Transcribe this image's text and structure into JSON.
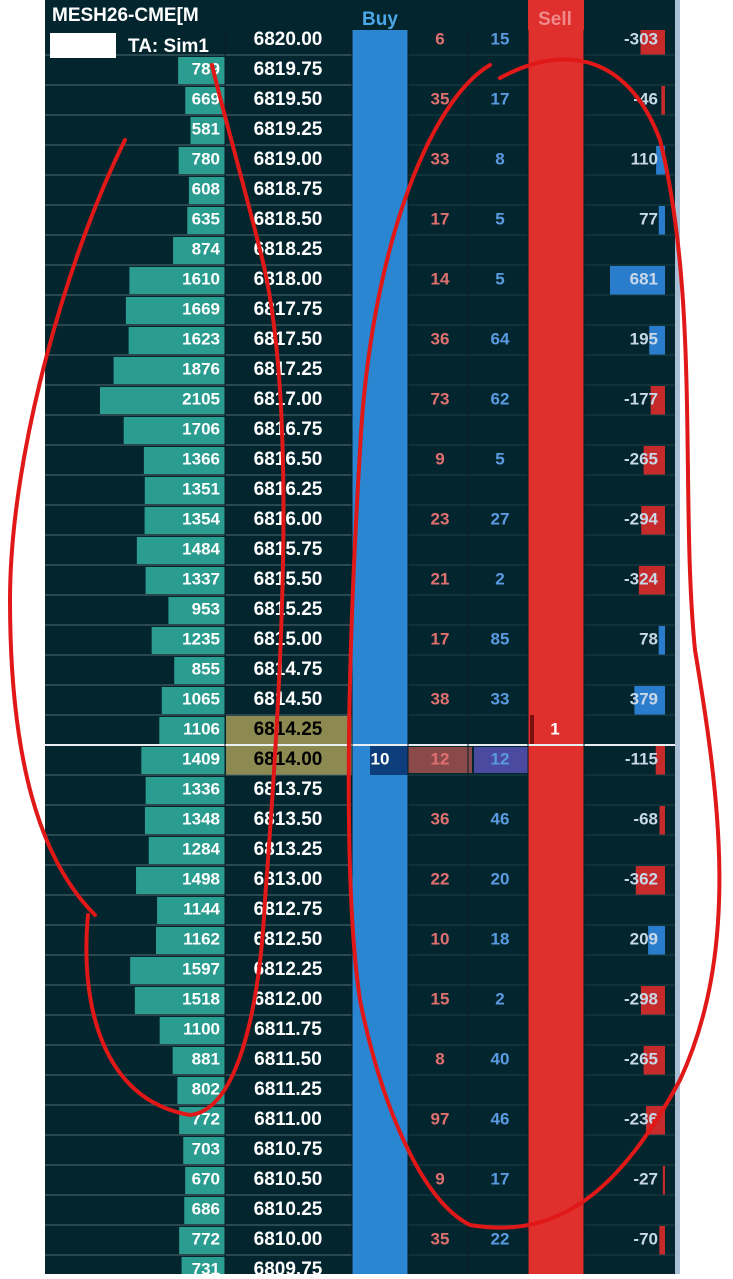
{
  "header": {
    "instrument": "MESH26-CME[M",
    "account": "TA: Sim1",
    "buy_label": "Buy",
    "sell_label": "Sell"
  },
  "rows": [
    {
      "price": "6820.00",
      "ask": 6,
      "bid": 15,
      "delta": -303
    },
    {
      "price": "6819.75",
      "volume": 789
    },
    {
      "price": "6819.50",
      "volume": 669,
      "ask": 35,
      "bid": 17,
      "delta": -46
    },
    {
      "price": "6819.25",
      "volume": 581
    },
    {
      "price": "6819.00",
      "volume": 780,
      "ask": 33,
      "bid": 8,
      "delta": 110
    },
    {
      "price": "6818.75",
      "volume": 608
    },
    {
      "price": "6818.50",
      "volume": 635,
      "ask": 17,
      "bid": 5,
      "delta": 77
    },
    {
      "price": "6818.25",
      "volume": 874
    },
    {
      "price": "6818.00",
      "volume": 1610,
      "ask": 14,
      "bid": 5,
      "delta": 681
    },
    {
      "price": "6817.75",
      "volume": 1669
    },
    {
      "price": "6817.50",
      "volume": 1623,
      "ask": 36,
      "bid": 64,
      "delta": 195
    },
    {
      "price": "6817.25",
      "volume": 1876
    },
    {
      "price": "6817.00",
      "volume": 2105,
      "ask": 73,
      "bid": 62,
      "delta": -177
    },
    {
      "price": "6816.75",
      "volume": 1706
    },
    {
      "price": "6816.50",
      "volume": 1366,
      "ask": 9,
      "bid": 5,
      "delta": -265
    },
    {
      "price": "6816.25",
      "volume": 1351
    },
    {
      "price": "6816.00",
      "volume": 1354,
      "ask": 23,
      "bid": 27,
      "delta": -294
    },
    {
      "price": "6815.75",
      "volume": 1484
    },
    {
      "price": "6815.50",
      "volume": 1337,
      "ask": 21,
      "bid": 2,
      "delta": -324
    },
    {
      "price": "6815.25",
      "volume": 953
    },
    {
      "price": "6815.00",
      "volume": 1235,
      "ask": 17,
      "bid": 85,
      "delta": 78
    },
    {
      "price": "6814.75",
      "volume": 855
    },
    {
      "price": "6814.50",
      "volume": 1065,
      "ask": 38,
      "bid": 33,
      "delta": 379
    },
    {
      "price": "6814.25",
      "volume": 1106,
      "sell_order": 1
    },
    {
      "price": "6814.00",
      "volume": 1409,
      "buy_order": 10,
      "ask": 12,
      "bid": 12,
      "delta": -115
    },
    {
      "price": "6813.75",
      "volume": 1336
    },
    {
      "price": "6813.50",
      "volume": 1348,
      "ask": 36,
      "bid": 46,
      "delta": -68
    },
    {
      "price": "6813.25",
      "volume": 1284
    },
    {
      "price": "6813.00",
      "volume": 1498,
      "ask": 22,
      "bid": 20,
      "delta": -362
    },
    {
      "price": "6812.75",
      "volume": 1144
    },
    {
      "price": "6812.50",
      "volume": 1162,
      "ask": 10,
      "bid": 18,
      "delta": 209
    },
    {
      "price": "6812.25",
      "volume": 1597
    },
    {
      "price": "6812.00",
      "volume": 1518,
      "ask": 15,
      "bid": 2,
      "delta": -298
    },
    {
      "price": "6811.75",
      "volume": 1100
    },
    {
      "price": "6811.50",
      "volume": 881,
      "ask": 8,
      "bid": 40,
      "delta": -265
    },
    {
      "price": "6811.25",
      "volume": 802
    },
    {
      "price": "6811.00",
      "volume": 772,
      "ask": 97,
      "bid": 46,
      "delta": -236
    },
    {
      "price": "6810.75",
      "volume": 703
    },
    {
      "price": "6810.50",
      "volume": 670,
      "ask": 9,
      "bid": 17,
      "delta": -27
    },
    {
      "price": "6810.25",
      "volume": 686
    },
    {
      "price": "6810.00",
      "volume": 772,
      "ask": 35,
      "bid": 22,
      "delta": -70
    },
    {
      "price": "6809.75",
      "volume": 731
    }
  ]
}
